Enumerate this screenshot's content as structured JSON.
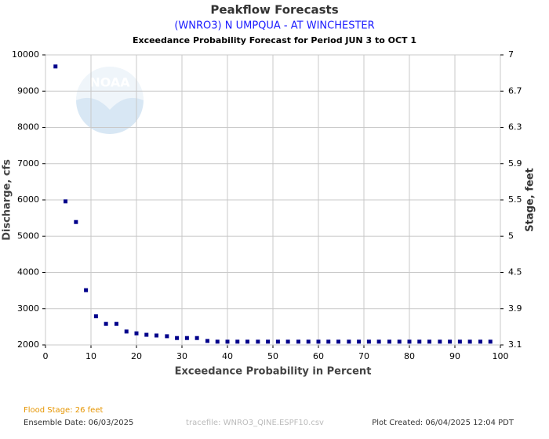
{
  "chart_data": {
    "type": "scatter",
    "title": "Peakflow Forecasts",
    "subtitle": "(WNRO3) N UMPQUA - AT WINCHESTER",
    "period": "Exceedance Probability Forecast for Period JUN 3 to OCT 1",
    "xlabel": "Exceedance Probability in Percent",
    "ylabel": "Discharge, cfs",
    "y2label": "Stage, feet",
    "logo_text": "NOAA",
    "xlim": [
      0,
      100
    ],
    "xticks": [
      0,
      10,
      20,
      30,
      40,
      50,
      60,
      70,
      80,
      90,
      100
    ],
    "ylim": [
      2000,
      10000
    ],
    "yticks": [
      2000,
      3000,
      4000,
      5000,
      6000,
      7000,
      8000,
      9000,
      10000
    ],
    "y2lim": [
      3.1,
      7.0
    ],
    "y2ticks": [
      3.1,
      3.9,
      4.5,
      5.0,
      5.5,
      5.9,
      6.3,
      6.7,
      7.0
    ],
    "grid": true,
    "color": "#00008b",
    "x": [
      2.2,
      4.4,
      6.7,
      8.9,
      11.1,
      13.3,
      15.6,
      17.8,
      20,
      22.2,
      24.4,
      26.7,
      28.9,
      31.1,
      33.3,
      35.6,
      37.8,
      40,
      42.2,
      44.4,
      46.7,
      48.9,
      51.1,
      53.3,
      55.6,
      57.8,
      60,
      62.2,
      64.4,
      66.7,
      68.9,
      71.1,
      73.3,
      75.6,
      77.8,
      80,
      82.2,
      84.4,
      86.7,
      88.9,
      91.1,
      93.3,
      95.6,
      97.8
    ],
    "values": [
      9680,
      5960,
      5390,
      3510,
      2790,
      2580,
      2580,
      2370,
      2320,
      2280,
      2260,
      2240,
      2190,
      2190,
      2190,
      2110,
      2090,
      2090,
      2090,
      2090,
      2090,
      2090,
      2090,
      2090,
      2090,
      2090,
      2090,
      2090,
      2090,
      2090,
      2090,
      2090,
      2090,
      2090,
      2090,
      2090,
      2090,
      2090,
      2090,
      2090,
      2090,
      2090,
      2090,
      2090
    ],
    "footer": {
      "flood_stage": "Flood Stage: 26 feet",
      "ensemble_date": "Ensemble Date: 06/03/2025",
      "tracefile": "tracefile: WNRO3_QINE.ESPF10.csv",
      "plot_created": "Plot Created: 06/04/2025 12:04 PDT"
    }
  }
}
